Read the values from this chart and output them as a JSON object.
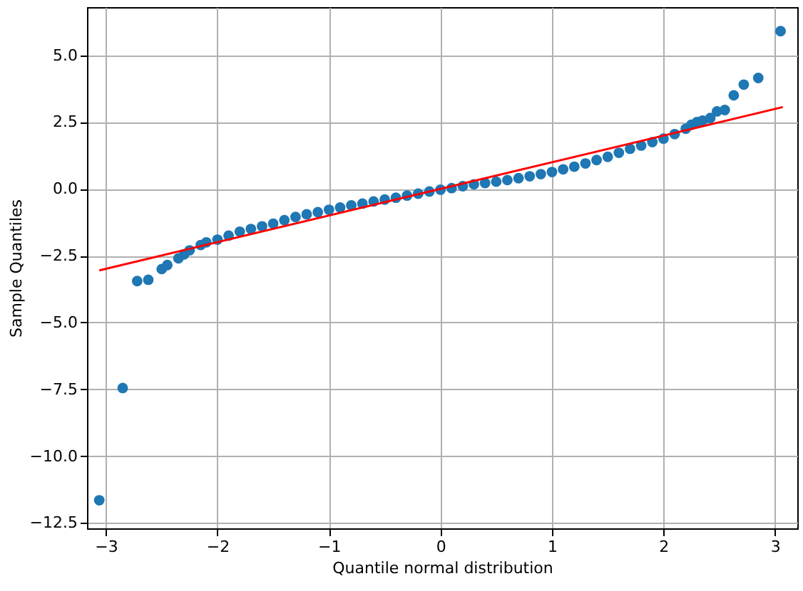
{
  "chart_data": {
    "type": "scatter",
    "xlabel": "Quantile normal distribution",
    "ylabel": "Sample Quantiles",
    "xlim": [
      -3.17,
      3.2
    ],
    "ylim": [
      -12.7,
      6.8
    ],
    "xticks": [
      -3,
      -2,
      -1,
      0,
      1,
      2,
      3
    ],
    "yticks": [
      {
        "value": -12.5,
        "label": "−12.5"
      },
      {
        "value": -10,
        "label": "−10.0"
      },
      {
        "value": -7.5,
        "label": "−7.5"
      },
      {
        "value": -5,
        "label": "−5.0"
      },
      {
        "value": -2.5,
        "label": "−2.5"
      },
      {
        "value": 0,
        "label": "0.0"
      },
      {
        "value": 2.5,
        "label": "2.5"
      },
      {
        "value": 5,
        "label": "5.0"
      }
    ],
    "grid": true,
    "legend": false,
    "marker": "circle",
    "series": [
      {
        "type": "scatter",
        "color": "#1f77b4",
        "x": [
          -3.06,
          -2.85,
          -2.72,
          -2.62,
          -2.5,
          -2.45,
          -2.35,
          -2.3,
          -2.25,
          -2.15,
          -2.1,
          -2.0,
          -1.9,
          -1.8,
          -1.7,
          -1.6,
          -1.5,
          -1.4,
          -1.3,
          -1.2,
          -1.1,
          -1.0,
          -0.9,
          -0.8,
          -0.7,
          -0.6,
          -0.5,
          -0.4,
          -0.3,
          -0.2,
          -0.1,
          0.0,
          0.1,
          0.2,
          0.3,
          0.4,
          0.5,
          0.6,
          0.7,
          0.8,
          0.9,
          1.0,
          1.1,
          1.2,
          1.3,
          1.4,
          1.5,
          1.6,
          1.7,
          1.8,
          1.9,
          2.0,
          2.1,
          2.2,
          2.25,
          2.3,
          2.35,
          2.42,
          2.48,
          2.55,
          2.63,
          2.72,
          2.85,
          3.05
        ],
        "values": [
          -11.65,
          -7.45,
          -3.45,
          -3.4,
          -3.0,
          -2.85,
          -2.6,
          -2.45,
          -2.3,
          -2.1,
          -2.0,
          -1.9,
          -1.75,
          -1.6,
          -1.5,
          -1.4,
          -1.3,
          -1.17,
          -1.05,
          -0.95,
          -0.87,
          -0.78,
          -0.7,
          -0.62,
          -0.55,
          -0.47,
          -0.4,
          -0.33,
          -0.25,
          -0.18,
          -0.1,
          -0.03,
          0.03,
          0.1,
          0.17,
          0.22,
          0.27,
          0.33,
          0.4,
          0.47,
          0.55,
          0.63,
          0.73,
          0.83,
          0.95,
          1.08,
          1.2,
          1.35,
          1.5,
          1.62,
          1.75,
          1.88,
          2.05,
          2.25,
          2.4,
          2.5,
          2.55,
          2.65,
          2.9,
          2.95,
          3.5,
          3.9,
          4.15,
          5.9
        ]
      },
      {
        "type": "line",
        "color": "#ff0000",
        "marker": "none",
        "x": [
          -3.06,
          3.07
        ],
        "values": [
          -3.05,
          3.06
        ]
      }
    ]
  }
}
